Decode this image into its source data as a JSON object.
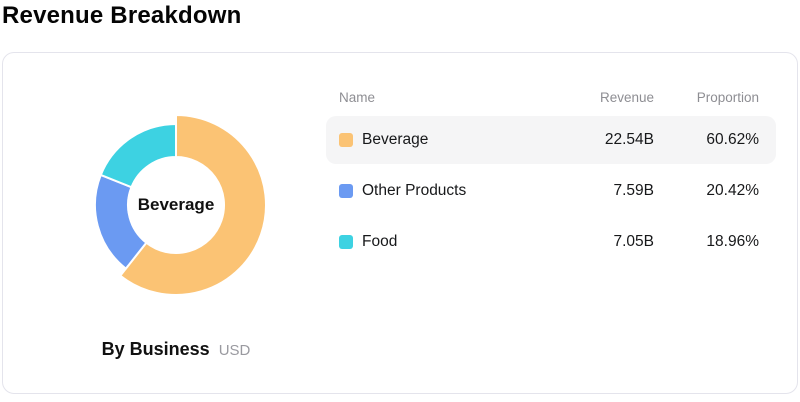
{
  "page_title": "Revenue Breakdown",
  "card": {
    "center_label": "Beverage",
    "caption": {
      "title": "By Business",
      "unit": "USD"
    },
    "table": {
      "headers": [
        "Name",
        "Revenue",
        "Proportion"
      ],
      "rows": [
        {
          "name": "Beverage",
          "revenue": "22.54B",
          "proportion": "60.62%",
          "highlighted": true
        },
        {
          "name": "Other Products",
          "revenue": "7.59B",
          "proportion": "20.42%",
          "highlighted": false
        },
        {
          "name": "Food",
          "revenue": "7.05B",
          "proportion": "18.96%",
          "highlighted": false
        }
      ]
    }
  },
  "chart_data": {
    "type": "pie",
    "donut": true,
    "title": "Revenue Breakdown",
    "subtitle": "By Business",
    "unit": "USD (billions)",
    "categories": [
      "Beverage",
      "Other Products",
      "Food"
    ],
    "values": [
      22.54,
      7.59,
      7.05
    ],
    "percentages": [
      60.62,
      20.42,
      18.96
    ],
    "colors": [
      "#FBC374",
      "#6B9AF2",
      "#3DD2E2"
    ],
    "selected": "Beverage",
    "start_angle_deg_clockwise_from_top": 0,
    "legend_position": "right-table"
  },
  "theme": {
    "row_highlight": "#F5F5F6",
    "card_border": "#E4E4EC",
    "header_text": "#8E8E93",
    "body_text": "#17181A"
  }
}
